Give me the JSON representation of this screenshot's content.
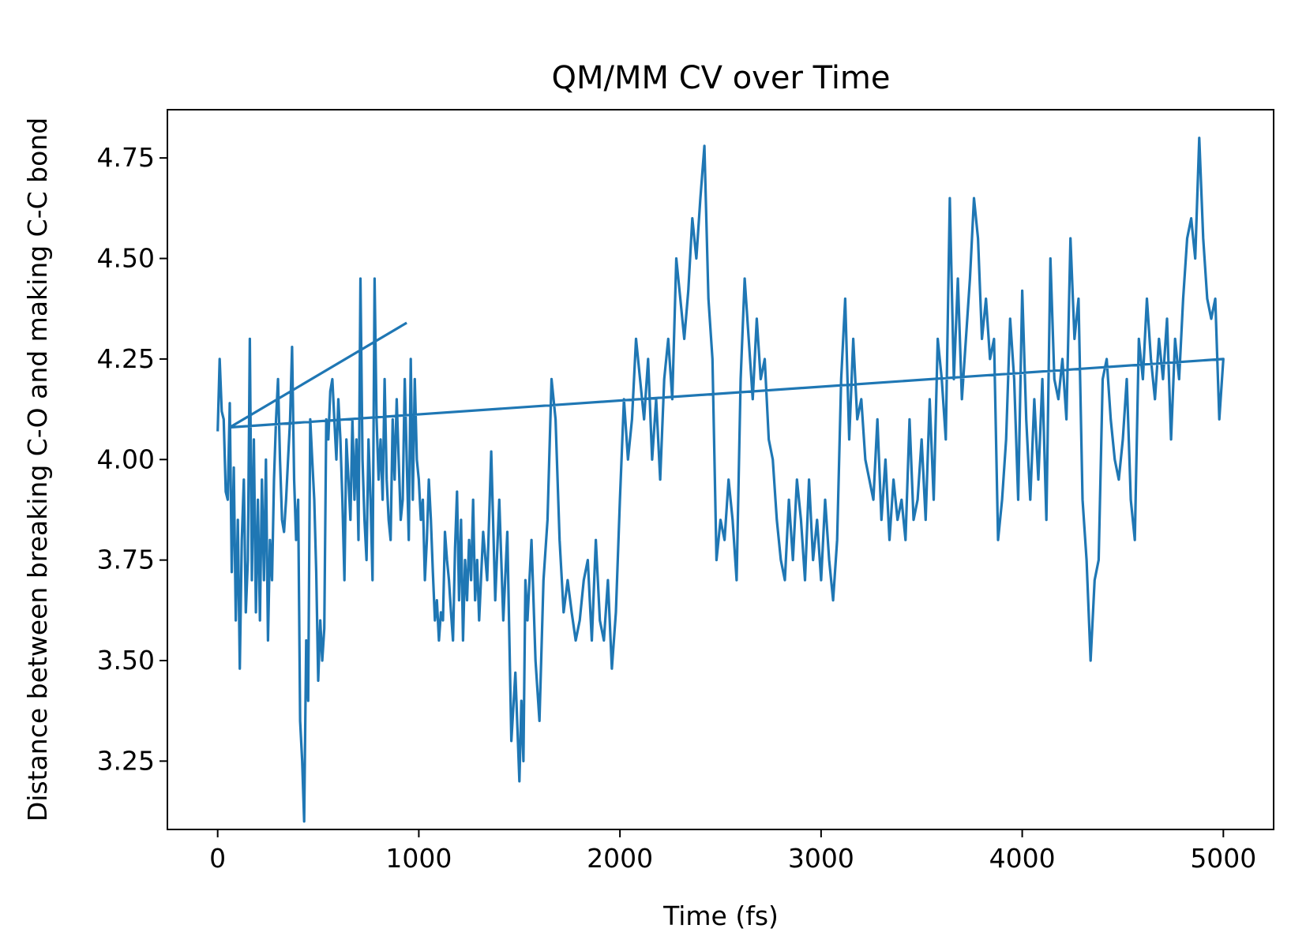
{
  "chart_data": {
    "type": "line",
    "title": "QM/MM CV over Time",
    "xlabel": "Time (fs)",
    "ylabel": "Distance between breaking C-O and making C-C bond",
    "xlim": [
      -250,
      5250
    ],
    "ylim": [
      3.08,
      4.87
    ],
    "xticks": [
      0,
      1000,
      2000,
      3000,
      4000,
      5000
    ],
    "xtick_labels": [
      "0",
      "1000",
      "2000",
      "3000",
      "4000",
      "5000"
    ],
    "yticks": [
      3.25,
      3.5,
      3.75,
      4.0,
      4.25,
      4.5,
      4.75
    ],
    "ytick_labels": [
      "3.25",
      "3.50",
      "3.75",
      "4.00",
      "4.25",
      "4.50",
      "4.75"
    ],
    "grid": false,
    "legend": "none",
    "line_color": "#1f77b4",
    "series": [
      {
        "x": [
          0,
          10,
          20,
          30,
          40,
          50,
          60,
          70,
          80,
          90,
          100,
          110,
          120,
          130,
          140,
          150,
          160,
          170,
          180,
          190,
          200,
          210,
          220,
          230,
          240,
          250,
          260,
          270,
          280,
          290,
          300,
          310,
          320,
          330,
          340,
          350,
          360,
          370,
          380,
          390,
          400,
          410,
          420,
          430,
          440,
          450,
          460,
          470,
          480,
          490,
          500,
          510,
          520,
          530,
          540,
          550,
          560,
          570,
          580,
          590,
          600,
          610,
          620,
          630,
          640,
          650,
          660,
          670,
          680,
          690,
          700,
          710,
          720,
          730,
          740,
          750,
          760,
          770,
          780,
          790,
          800,
          810,
          820,
          830,
          840,
          850,
          860,
          870,
          880,
          890,
          900,
          910,
          920,
          930,
          940,
          950,
          960,
          970,
          980,
          990,
          1000,
          1010,
          1020,
          1030,
          1040,
          1050,
          1060,
          1070,
          1080,
          1090,
          1100,
          1110,
          1120,
          1130,
          1140,
          1150,
          1160,
          1170,
          1180,
          1190,
          1200,
          1210,
          1220,
          1230,
          1240,
          1250,
          1260,
          1270,
          1280,
          1290,
          1300,
          1320,
          1340,
          1360,
          1380,
          1400,
          1420,
          1440,
          1460,
          1480,
          1500,
          1510,
          1520,
          1530,
          1540,
          1560,
          1580,
          1600,
          1620,
          1640,
          1660,
          1680,
          1700,
          1720,
          1740,
          1760,
          1780,
          1800,
          1820,
          1840,
          1860,
          1880,
          1900,
          1920,
          1940,
          1960,
          1980,
          2000,
          2020,
          2040,
          2060,
          2080,
          2100,
          2120,
          2140,
          2160,
          2180,
          2200,
          2220,
          2240,
          2260,
          2280,
          2300,
          2320,
          2340,
          2360,
          2380,
          2400,
          2420,
          2440,
          2460,
          2480,
          2500,
          2520,
          2540,
          2560,
          2580,
          2600,
          2620,
          2640,
          2660,
          2680,
          2700,
          2720,
          2740,
          2760,
          2780,
          2800,
          2820,
          2840,
          2860,
          2880,
          2900,
          2920,
          2940,
          2960,
          2980,
          3000,
          3020,
          3040,
          3060,
          3080,
          3100,
          3120,
          3140,
          3160,
          3180,
          3200,
          3220,
          3240,
          3260,
          3280,
          3300,
          3320,
          3340,
          3360,
          3380,
          3400,
          3420,
          3440,
          3460,
          3480,
          3500,
          3520,
          3540,
          3560,
          3580,
          3600,
          3620,
          3640,
          3660,
          3680,
          3700,
          3720,
          3740,
          3760,
          3780,
          3800,
          3820,
          3840,
          3860,
          3880,
          3900,
          3920,
          3940,
          3960,
          3980,
          4000,
          4020,
          4040,
          4060,
          4080,
          4100,
          4120,
          4140,
          4160,
          4180,
          4200,
          4220,
          4240,
          4260,
          4280,
          4300,
          4320,
          4340,
          4360,
          4380,
          4400,
          4420,
          4440,
          4460,
          4480,
          4500,
          4520,
          4540,
          4560,
          4580,
          4600,
          4620,
          4640,
          4660,
          4680,
          4700,
          4720,
          4740,
          4760,
          4780,
          4800,
          4820,
          4840,
          4860,
          4880,
          4900,
          4920,
          4940,
          4960,
          4980,
          5000,
          60,
          940
        ],
        "y": [
          4.07,
          4.25,
          4.12,
          4.1,
          3.92,
          3.9,
          4.14,
          3.72,
          3.98,
          3.6,
          3.85,
          3.48,
          3.8,
          3.95,
          3.62,
          3.75,
          4.3,
          3.7,
          4.05,
          3.62,
          3.9,
          3.6,
          3.95,
          3.7,
          4.0,
          3.55,
          3.8,
          3.7,
          3.95,
          4.1,
          4.2,
          4.0,
          3.85,
          3.82,
          3.9,
          4.0,
          4.1,
          4.28,
          3.95,
          3.8,
          3.9,
          3.35,
          3.25,
          3.1,
          3.55,
          3.4,
          4.1,
          4.0,
          3.9,
          3.72,
          3.45,
          3.6,
          3.5,
          3.58,
          4.1,
          4.05,
          4.17,
          4.2,
          4.1,
          4.0,
          4.15,
          4.05,
          3.9,
          3.7,
          4.05,
          3.95,
          3.85,
          4.1,
          3.9,
          4.05,
          3.8,
          4.45,
          4.0,
          3.85,
          3.75,
          4.05,
          3.9,
          3.7,
          4.45,
          4.1,
          3.95,
          4.05,
          3.9,
          4.2,
          3.95,
          3.85,
          3.8,
          4.1,
          3.95,
          4.15,
          4.0,
          3.85,
          3.9,
          4.2,
          4.0,
          3.8,
          4.25,
          3.9,
          4.2,
          4.0,
          3.95,
          3.85,
          3.9,
          3.7,
          3.8,
          3.95,
          3.85,
          3.72,
          3.6,
          3.65,
          3.55,
          3.62,
          3.6,
          3.82,
          3.75,
          3.7,
          3.62,
          3.55,
          3.78,
          3.92,
          3.65,
          3.85,
          3.55,
          3.75,
          3.65,
          3.8,
          3.7,
          3.9,
          3.65,
          3.75,
          3.6,
          3.82,
          3.7,
          4.02,
          3.65,
          3.9,
          3.6,
          3.82,
          3.3,
          3.47,
          3.2,
          3.4,
          3.25,
          3.7,
          3.6,
          3.8,
          3.5,
          3.35,
          3.7,
          3.85,
          4.2,
          4.1,
          3.8,
          3.62,
          3.7,
          3.62,
          3.55,
          3.6,
          3.7,
          3.75,
          3.55,
          3.8,
          3.6,
          3.55,
          3.7,
          3.48,
          3.62,
          3.9,
          4.15,
          4.0,
          4.1,
          4.3,
          4.2,
          4.1,
          4.25,
          4.0,
          4.15,
          3.95,
          4.2,
          4.3,
          4.15,
          4.5,
          4.4,
          4.3,
          4.42,
          4.6,
          4.5,
          4.65,
          4.78,
          4.4,
          4.25,
          3.75,
          3.85,
          3.8,
          3.95,
          3.85,
          3.7,
          4.2,
          4.45,
          4.3,
          4.15,
          4.35,
          4.2,
          4.25,
          4.05,
          4.0,
          3.85,
          3.75,
          3.7,
          3.9,
          3.75,
          3.95,
          3.85,
          3.7,
          3.95,
          3.75,
          3.85,
          3.7,
          3.9,
          3.75,
          3.65,
          3.8,
          4.2,
          4.4,
          4.05,
          4.3,
          4.1,
          4.15,
          4.0,
          3.95,
          3.9,
          4.1,
          3.85,
          4.0,
          3.8,
          3.95,
          3.85,
          3.9,
          3.8,
          4.1,
          3.85,
          3.9,
          4.05,
          3.85,
          4.15,
          3.9,
          4.3,
          4.2,
          4.05,
          4.65,
          4.2,
          4.45,
          4.15,
          4.3,
          4.45,
          4.65,
          4.55,
          4.3,
          4.4,
          4.25,
          4.3,
          3.8,
          3.9,
          4.05,
          4.35,
          4.2,
          3.9,
          4.42,
          4.1,
          3.9,
          4.15,
          3.95,
          4.2,
          3.85,
          4.5,
          4.2,
          4.15,
          4.25,
          4.1,
          4.55,
          4.3,
          4.4,
          3.9,
          3.75,
          3.5,
          3.7,
          3.75,
          4.2,
          4.25,
          4.1,
          4.0,
          3.95,
          4.05,
          4.2,
          3.9,
          3.8,
          4.3,
          4.2,
          4.4,
          4.25,
          4.15,
          4.3,
          4.2,
          4.35,
          4.05,
          4.3,
          4.2,
          4.4,
          4.55,
          4.6,
          4.5,
          4.8,
          4.55,
          4.4,
          4.35,
          4.4,
          4.1,
          4.25,
          4.08,
          4.34
        ]
      }
    ]
  }
}
